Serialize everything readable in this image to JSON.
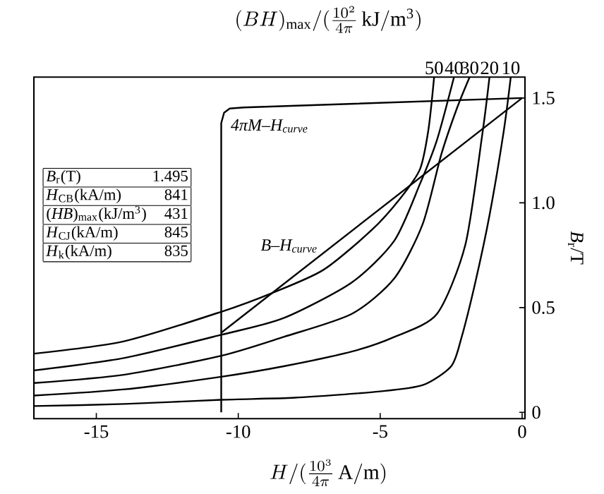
{
  "chart_data": {
    "type": "line",
    "title": "(BH)_{\\max}/(\\frac{10^{2}}{4\\pi}\\,\\mathrm{kJ/m^{3}})",
    "xlabel": "H/(\\frac{10^{3}}{4\\pi}\\,\\mathrm{A/m})",
    "ylabel": "*B*$_{r}$/T",
    "xlim": [
      -17.2,
      0.1
    ],
    "ylim": [
      -0.03,
      1.6
    ],
    "xticks": [
      -15,
      -10,
      -5,
      0
    ],
    "yticks": [
      0,
      0.5,
      {
        "value": 1,
        "label": "1.0"
      },
      1.5
    ],
    "tick_labels": "xy",
    "grid": false,
    "marker": "none",
    "line_style": "solid",
    "series": [
      {
        "name": "4πM–H$_{curve}$",
        "color": "#000000",
        "x": [
          -10.6,
          -10.6,
          -10.5,
          -10.3,
          -9.8,
          0
        ],
        "values": [
          0,
          1.38,
          1.43,
          1.45,
          1.455,
          1.5
        ]
      },
      {
        "name": "B–H$_{curve}$",
        "color": "#000000",
        "x": [
          -10.6,
          0
        ],
        "values": [
          0.38,
          1.5
        ]
      },
      {
        "name": "50",
        "color": "#000000",
        "x": [
          -17.2,
          -14,
          -10.6,
          -8.8,
          -7,
          -5.3,
          -4.3,
          -3.6,
          -3.3,
          -3.1
        ],
        "values": [
          0.28,
          0.34,
          0.48,
          0.57,
          0.68,
          0.87,
          1.02,
          1.16,
          1.35,
          1.6
        ]
      },
      {
        "name": "40",
        "color": "#000000",
        "x": [
          -17.2,
          -14,
          -10.6,
          -8.4,
          -6,
          -4.5,
          -3.6,
          -3,
          -2.4
        ],
        "values": [
          0.2,
          0.26,
          0.37,
          0.45,
          0.62,
          0.82,
          1.09,
          1.3,
          1.6
        ]
      },
      {
        "name": "30",
        "color": "#000000",
        "x": [
          -17.2,
          -14,
          -10.6,
          -8.4,
          -6,
          -4.5,
          -3.5,
          -2.85,
          -2.3,
          -1.85
        ],
        "values": [
          0.14,
          0.18,
          0.27,
          0.36,
          0.47,
          0.64,
          0.9,
          1.23,
          1.45,
          1.6
        ]
      },
      {
        "name": "20",
        "color": "#000000",
        "x": [
          -17.2,
          -14,
          -10.6,
          -8.4,
          -6,
          -4.5,
          -3,
          -2,
          -1.4,
          -1.15
        ],
        "values": [
          0.08,
          0.11,
          0.17,
          0.22,
          0.29,
          0.36,
          0.47,
          0.8,
          1.33,
          1.6
        ]
      },
      {
        "name": "10",
        "color": "#000000",
        "x": [
          -17.2,
          -14,
          -10.6,
          -8,
          -5,
          -3.5,
          -2.5,
          -2.15,
          -1.65,
          -1.15,
          -0.65,
          -0.4
        ],
        "values": [
          0.03,
          0.04,
          0.06,
          0.07,
          0.1,
          0.13,
          0.22,
          0.35,
          0.62,
          0.94,
          1.34,
          1.6
        ]
      }
    ],
    "annotations": [
      "*B*$_{r}$(T)",
      "1.495",
      "*H*$_{CB}$(kA/m)",
      "841",
      "(*HB*)$_{max}$(kJ/m$^{3}$)",
      "431",
      "*H*$_{CJ}$(kA/m)",
      "845",
      "*H*$_{k}$(kA/m)",
      "835"
    ]
  }
}
